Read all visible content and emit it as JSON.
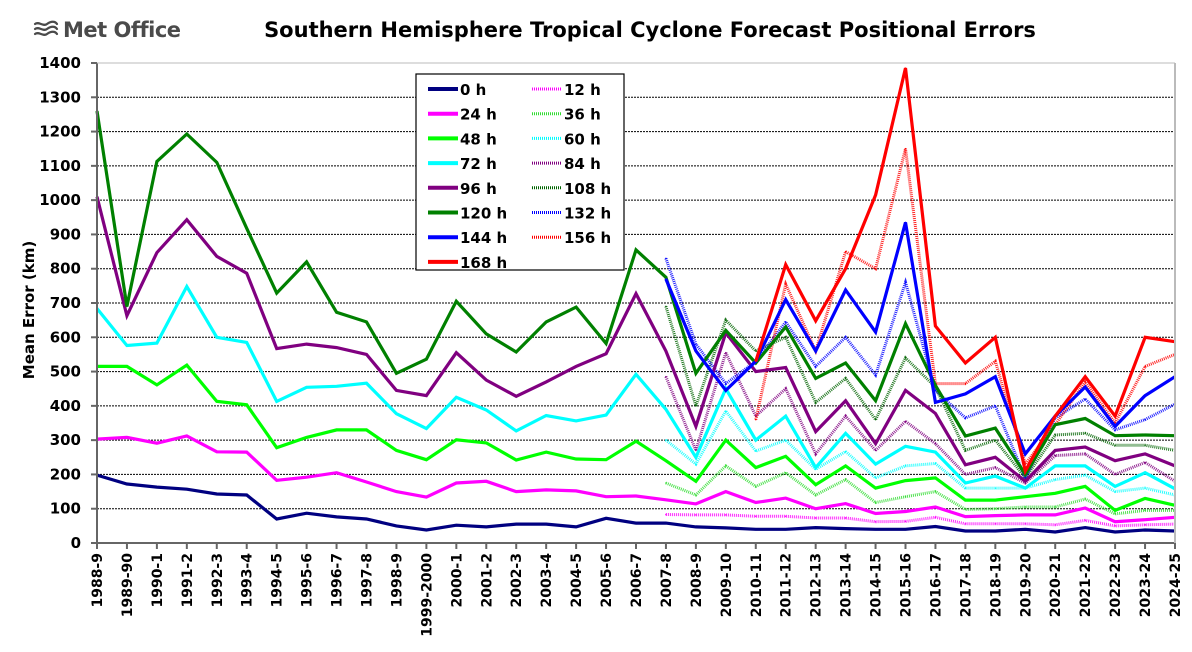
{
  "logo": {
    "text": "Met Office",
    "icon": "waves-logo-icon"
  },
  "chart_data": {
    "type": "line",
    "title": "Southern Hemisphere Tropical Cyclone Forecast Positional Errors",
    "xlabel": "",
    "ylabel": "Mean Error (km)",
    "ylim": [
      0,
      1400
    ],
    "yticks": [
      0,
      100,
      200,
      300,
      400,
      500,
      600,
      700,
      800,
      900,
      1000,
      1100,
      1200,
      1300,
      1400
    ],
    "grid": true,
    "legend_position": "top-center",
    "categories": [
      "1988-9",
      "1989-90",
      "1990-1",
      "1991-2",
      "1992-3",
      "1993-4",
      "1994-5",
      "1995-6",
      "1996-7",
      "1997-8",
      "1998-9",
      "1999-2000",
      "2000-1",
      "2001-2",
      "2002-3",
      "2003-4",
      "2004-5",
      "2005-6",
      "2006-7",
      "2007-8",
      "2008-9",
      "2009-10",
      "2010-11",
      "2011-12",
      "2012-13",
      "2013-14",
      "2014-15",
      "2015-16",
      "2016-17",
      "2017-18",
      "2018-19",
      "2019-20",
      "2020-21",
      "2021-22",
      "2022-23",
      "2023-24",
      "2024-25"
    ],
    "series": [
      {
        "name": "0 h",
        "color": "#000080",
        "style": "solid",
        "values": [
          198,
          172,
          163,
          157,
          143,
          140,
          70,
          87,
          76,
          70,
          50,
          38,
          52,
          47,
          55,
          55,
          47,
          72,
          58,
          58,
          47,
          44,
          40,
          40,
          45,
          42,
          40,
          40,
          48,
          35,
          35,
          40,
          32,
          45,
          32,
          38,
          35
        ]
      },
      {
        "name": "12 h",
        "color": "#ff00ff",
        "style": "dotted",
        "values": [
          null,
          null,
          null,
          null,
          null,
          null,
          null,
          null,
          null,
          null,
          null,
          null,
          null,
          null,
          null,
          null,
          null,
          null,
          null,
          83,
          82,
          82,
          78,
          78,
          73,
          73,
          62,
          63,
          75,
          56,
          56,
          56,
          53,
          66,
          50,
          53,
          55
        ]
      },
      {
        "name": "24 h",
        "color": "#ff00ff",
        "style": "solid",
        "values": [
          303,
          308,
          291,
          312,
          266,
          265,
          183,
          192,
          205,
          178,
          150,
          134,
          175,
          180,
          150,
          155,
          152,
          135,
          137,
          126,
          114,
          150,
          118,
          131,
          100,
          115,
          86,
          92,
          105,
          77,
          80,
          82,
          82,
          102,
          62,
          68,
          75
        ]
      },
      {
        "name": "36 h",
        "color": "#33dd33",
        "style": "dotted",
        "values": [
          null,
          null,
          null,
          null,
          null,
          null,
          null,
          null,
          null,
          null,
          null,
          null,
          null,
          null,
          null,
          null,
          null,
          null,
          null,
          175,
          140,
          225,
          165,
          205,
          140,
          185,
          118,
          135,
          150,
          98,
          100,
          105,
          105,
          128,
          85,
          95,
          95
        ]
      },
      {
        "name": "48 h",
        "color": "#00ff00",
        "style": "solid",
        "values": [
          515,
          515,
          461,
          519,
          413,
          403,
          278,
          308,
          330,
          330,
          270,
          243,
          301,
          292,
          242,
          265,
          245,
          243,
          297,
          240,
          180,
          300,
          220,
          253,
          170,
          225,
          160,
          182,
          190,
          125,
          125,
          135,
          145,
          165,
          95,
          130,
          110
        ]
      },
      {
        "name": "60 h",
        "color": "#00ffff",
        "style": "dotted",
        "values": [
          null,
          null,
          null,
          null,
          null,
          null,
          null,
          null,
          null,
          null,
          null,
          null,
          null,
          null,
          null,
          null,
          null,
          null,
          null,
          300,
          230,
          385,
          268,
          300,
          215,
          267,
          190,
          225,
          232,
          160,
          160,
          160,
          185,
          198,
          150,
          160,
          140
        ]
      },
      {
        "name": "72 h",
        "color": "#00ffff",
        "style": "solid",
        "values": [
          684,
          576,
          583,
          748,
          600,
          585,
          413,
          454,
          457,
          466,
          377,
          334,
          425,
          388,
          327,
          372,
          356,
          373,
          492,
          390,
          250,
          450,
          300,
          370,
          220,
          320,
          230,
          282,
          265,
          175,
          195,
          160,
          225,
          225,
          165,
          205,
          158
        ]
      },
      {
        "name": "84 h",
        "color": "#800080",
        "style": "dotted",
        "values": [
          null,
          null,
          null,
          null,
          null,
          null,
          null,
          null,
          null,
          null,
          null,
          null,
          null,
          null,
          null,
          null,
          null,
          null,
          null,
          485,
          270,
          555,
          370,
          450,
          260,
          370,
          270,
          355,
          290,
          200,
          220,
          175,
          255,
          260,
          200,
          235,
          180
        ]
      },
      {
        "name": "96 h",
        "color": "#800080",
        "style": "solid",
        "values": [
          1010,
          663,
          847,
          943,
          836,
          787,
          567,
          580,
          570,
          550,
          445,
          430,
          555,
          475,
          428,
          470,
          515,
          552,
          727,
          560,
          340,
          613,
          500,
          512,
          325,
          415,
          290,
          445,
          378,
          228,
          250,
          180,
          270,
          280,
          240,
          260,
          225
        ]
      },
      {
        "name": "108 h",
        "color": "#006400",
        "style": "dotted",
        "values": [
          null,
          null,
          null,
          null,
          null,
          null,
          null,
          null,
          null,
          null,
          null,
          null,
          null,
          null,
          null,
          null,
          null,
          null,
          null,
          690,
          400,
          650,
          560,
          600,
          410,
          480,
          360,
          540,
          455,
          270,
          300,
          190,
          315,
          320,
          285,
          285,
          270
        ]
      },
      {
        "name": "120 h",
        "color": "#008000",
        "style": "solid",
        "values": [
          1260,
          690,
          1113,
          1193,
          1110,
          918,
          729,
          820,
          673,
          645,
          495,
          536,
          705,
          610,
          557,
          645,
          688,
          582,
          855,
          775,
          495,
          620,
          525,
          630,
          480,
          525,
          415,
          640,
          460,
          312,
          335,
          200,
          345,
          363,
          313,
          315,
          313
        ]
      },
      {
        "name": "132 h",
        "color": "#0000ff",
        "style": "dotted",
        "values": [
          null,
          null,
          null,
          null,
          null,
          null,
          null,
          null,
          null,
          null,
          null,
          null,
          null,
          null,
          null,
          null,
          null,
          null,
          null,
          830,
          580,
          465,
          530,
          645,
          515,
          600,
          490,
          760,
          445,
          365,
          400,
          190,
          365,
          420,
          330,
          360,
          405
        ]
      },
      {
        "name": "144 h",
        "color": "#0000ff",
        "style": "solid",
        "values": [
          null,
          null,
          null,
          null,
          null,
          null,
          null,
          null,
          null,
          null,
          null,
          null,
          null,
          null,
          null,
          null,
          null,
          null,
          null,
          770,
          560,
          445,
          530,
          710,
          560,
          738,
          615,
          935,
          410,
          435,
          485,
          260,
          370,
          455,
          340,
          430,
          485
        ]
      },
      {
        "name": "156 h",
        "color": "#ff0000",
        "style": "dotted",
        "values": [
          null,
          null,
          null,
          null,
          null,
          null,
          null,
          null,
          null,
          null,
          null,
          null,
          null,
          null,
          null,
          null,
          null,
          null,
          null,
          null,
          null,
          null,
          360,
          755,
          560,
          850,
          800,
          1150,
          465,
          465,
          530,
          230,
          345,
          470,
          350,
          515,
          550
        ]
      },
      {
        "name": "168 h",
        "color": "#ff0000",
        "style": "solid",
        "values": [
          null,
          null,
          null,
          null,
          null,
          null,
          null,
          null,
          null,
          null,
          null,
          null,
          null,
          null,
          null,
          null,
          null,
          null,
          null,
          null,
          null,
          null,
          530,
          812,
          648,
          800,
          1015,
          1385,
          633,
          525,
          600,
          210,
          370,
          485,
          370,
          600,
          587
        ]
      }
    ]
  }
}
